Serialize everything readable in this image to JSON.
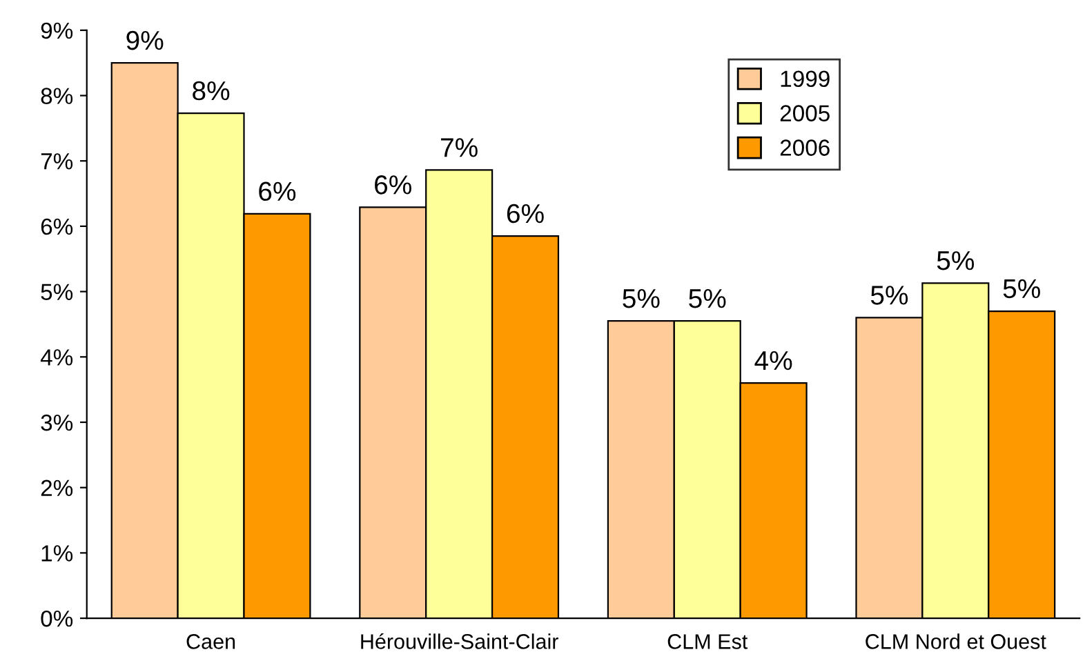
{
  "chart_data": {
    "type": "bar",
    "categories": [
      "Caen",
      "Hérouville-Saint-Clair",
      "CLM Est",
      "CLM Nord et Ouest"
    ],
    "series": [
      {
        "name": "1999",
        "color": "#ffcc99",
        "values": [
          8.5,
          6.29,
          4.55,
          4.6
        ],
        "value_labels": [
          "9%",
          "6%",
          "5%",
          "5%"
        ]
      },
      {
        "name": "2005",
        "color": "#ffff99",
        "values": [
          7.73,
          6.86,
          4.55,
          5.13
        ],
        "value_labels": [
          "8%",
          "7%",
          "5%",
          "5%"
        ]
      },
      {
        "name": "2006",
        "color": "#ff9900",
        "values": [
          6.19,
          5.85,
          3.6,
          4.7
        ],
        "value_labels": [
          "6%",
          "6%",
          "4%",
          "5%"
        ]
      }
    ],
    "ylim": [
      0,
      9
    ],
    "yticks": [
      {
        "value": 0,
        "label": "0%"
      },
      {
        "value": 1,
        "label": "1%"
      },
      {
        "value": 2,
        "label": "2%"
      },
      {
        "value": 3,
        "label": "3%"
      },
      {
        "value": 4,
        "label": "4%"
      },
      {
        "value": 5,
        "label": "5%"
      },
      {
        "value": 6,
        "label": "6%"
      },
      {
        "value": 7,
        "label": "7%"
      },
      {
        "value": 8,
        "label": "8%"
      },
      {
        "value": 9,
        "label": "9%"
      }
    ],
    "grid": false,
    "legend": "top right"
  }
}
